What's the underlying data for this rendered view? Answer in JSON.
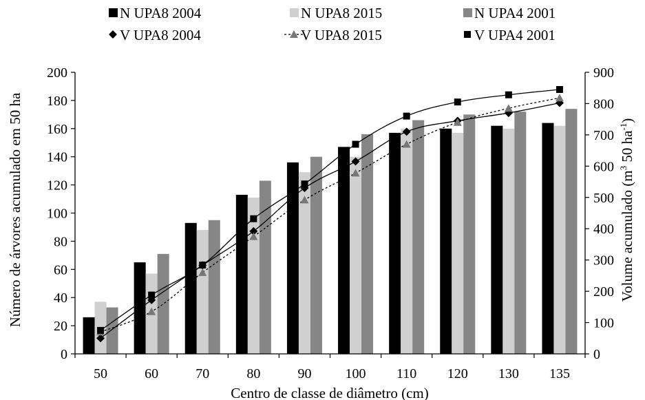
{
  "chart_data": {
    "type": "bar",
    "categories": [
      "50",
      "60",
      "70",
      "80",
      "90",
      "100",
      "110",
      "120",
      "130",
      "135"
    ],
    "xlabel": "Centro de classe de diâmetro (cm)",
    "ylabel": "Número de árvores acumulado em 50 ha",
    "y2label_main": "Volume  acumulado (m",
    "y2label_sup1": "3",
    "y2label_mid": " 50 ha",
    "y2label_sup2": "-1",
    "y2label_end": ")",
    "ylim": [
      0,
      200
    ],
    "yticks": [
      0,
      20,
      40,
      60,
      80,
      100,
      120,
      140,
      160,
      180,
      200
    ],
    "y2lim": [
      0,
      900
    ],
    "y2ticks": [
      0,
      100,
      200,
      300,
      400,
      500,
      600,
      700,
      800,
      900
    ],
    "legend_position": "top",
    "bar_series": [
      {
        "name": "N UPA8 2004",
        "color": "#000000",
        "values": [
          26,
          65,
          93,
          113,
          136,
          147,
          157,
          160,
          162,
          164
        ]
      },
      {
        "name": "N UPA8 2015",
        "color": "#d0d0d0",
        "values": [
          37,
          57,
          88,
          111,
          129,
          140,
          160,
          157,
          160,
          162
        ]
      },
      {
        "name": "N UPA4 2001",
        "color": "#868686",
        "values": [
          33,
          71,
          95,
          123,
          140,
          156,
          166,
          170,
          172,
          174
        ]
      }
    ],
    "line_series": [
      {
        "name": "V UPA8 2004",
        "axis": "right",
        "marker": "diamond",
        "color": "#000000",
        "dash": "",
        "values": [
          50,
          172,
          283,
          392,
          530,
          615,
          710,
          745,
          770,
          802
        ]
      },
      {
        "name": "V UPA8 2015",
        "axis": "right",
        "marker": "triangle",
        "color": "#777777",
        "dash": "3,3",
        "values": [
          70,
          135,
          260,
          375,
          492,
          578,
          670,
          740,
          785,
          818
        ]
      },
      {
        "name": "V UPA4 2001",
        "axis": "right",
        "marker": "square",
        "color": "#000000",
        "dash": "",
        "values": [
          75,
          188,
          284,
          432,
          543,
          670,
          760,
          805,
          828,
          845
        ]
      }
    ]
  }
}
